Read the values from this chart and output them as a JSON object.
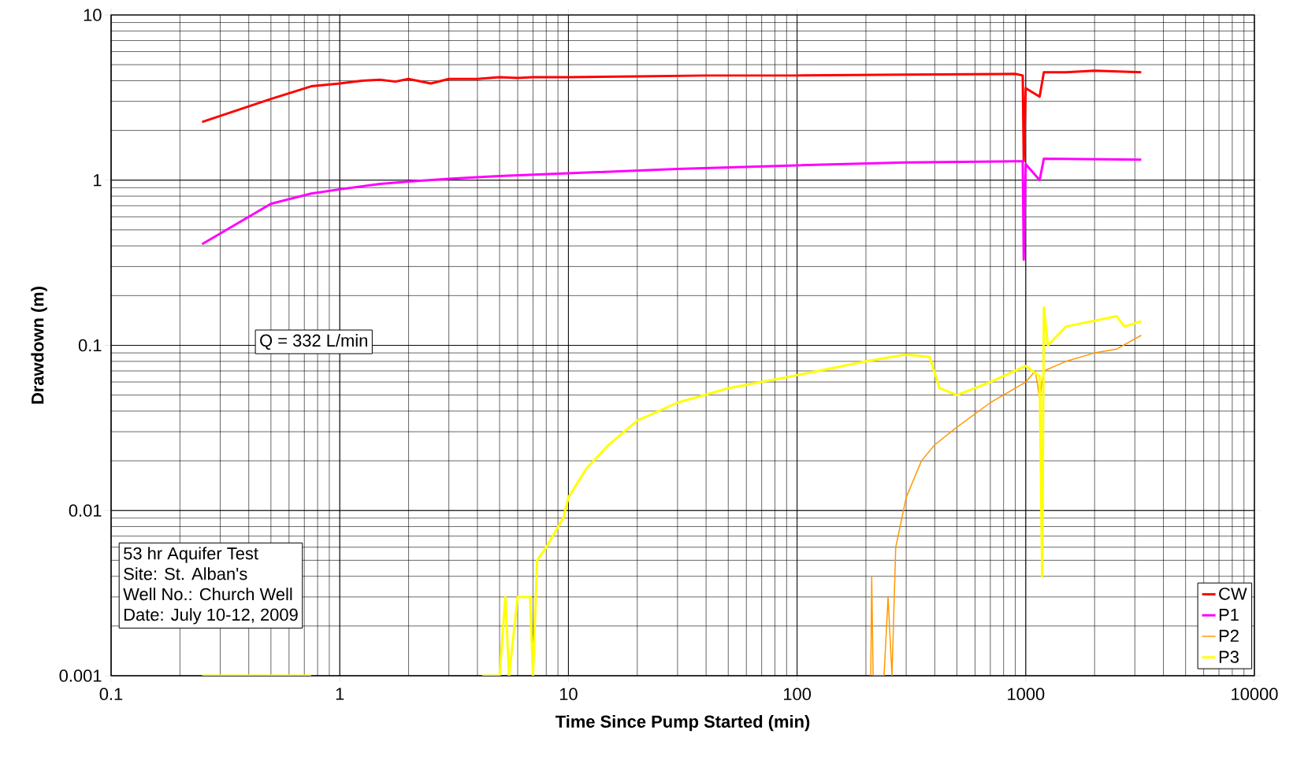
{
  "chart_data": {
    "type": "line",
    "xlabel": "Time Since Pump Started (min)",
    "ylabel": "Drawdown (m)",
    "log": "xy",
    "grid": true,
    "legend": "bottom right",
    "xlim": [
      0.1,
      10000
    ],
    "ylim": [
      0.001,
      10
    ],
    "xticks": [
      0.1,
      1,
      10,
      100,
      1000,
      10000
    ],
    "yticks": [
      0.001,
      0.01,
      0.1,
      1,
      10
    ],
    "annotations": [
      "Q = 332 L/min",
      "53 hr Aquifer Test",
      "Site: St. Alban's",
      "Well No.: Church Well",
      "Date: July 10-12, 2009"
    ],
    "series": [
      {
        "name": "CW",
        "color": "#ff0000",
        "x": [
          0.25,
          0.5,
          0.75,
          1,
          1.25,
          1.5,
          1.75,
          2,
          2.5,
          3,
          4,
          5,
          6,
          7,
          10,
          20,
          40,
          100,
          300,
          900,
          970,
          980,
          1000,
          1150,
          1200,
          1500,
          2000,
          3200
        ],
        "values": [
          2.25,
          3.1,
          3.7,
          3.85,
          4.0,
          4.05,
          3.95,
          4.1,
          3.85,
          4.1,
          4.1,
          4.2,
          4.15,
          4.2,
          4.2,
          4.25,
          4.3,
          4.3,
          4.35,
          4.4,
          4.3,
          1.3,
          3.6,
          3.2,
          4.5,
          4.5,
          4.6,
          4.5
        ]
      },
      {
        "name": "P1",
        "color": "#ff00ff",
        "x": [
          0.25,
          0.5,
          0.75,
          1,
          1.5,
          2,
          3,
          5,
          10,
          30,
          100,
          300,
          900,
          970,
          980,
          1000,
          1150,
          1200,
          3200
        ],
        "values": [
          0.41,
          0.72,
          0.83,
          0.88,
          0.95,
          0.98,
          1.02,
          1.06,
          1.1,
          1.17,
          1.23,
          1.28,
          1.3,
          1.3,
          0.33,
          1.25,
          1.0,
          1.35,
          1.33
        ]
      },
      {
        "name": "P2",
        "color": "#ff9900",
        "x": [
          210,
          212,
          215,
          240,
          250,
          260,
          270,
          300,
          350,
          400,
          500,
          700,
          1000,
          1100,
          1150,
          1200,
          1500,
          2000,
          2500,
          3200
        ],
        "values": [
          0.001,
          0.004,
          0.001,
          0.001,
          0.003,
          0.001,
          0.006,
          0.012,
          0.02,
          0.025,
          0.032,
          0.045,
          0.06,
          0.07,
          0.048,
          0.07,
          0.08,
          0.09,
          0.095,
          0.115
        ]
      },
      {
        "name": "P3",
        "color": "#ffff00",
        "x": [
          0.25,
          0.75,
          2,
          4.2,
          5,
          5.3,
          5.5,
          6,
          6.8,
          7,
          7.3,
          8,
          9.5,
          10,
          12,
          15,
          20,
          30,
          50,
          100,
          200,
          300,
          380,
          420,
          500,
          700,
          1000,
          1150,
          1180,
          1200,
          1250,
          1500,
          2500,
          2700,
          3200
        ],
        "values": [
          0.001,
          0.001,
          null,
          0.001,
          0.001,
          0.003,
          0.001,
          0.003,
          0.003,
          0.001,
          0.005,
          0.006,
          0.009,
          0.012,
          0.018,
          0.025,
          0.035,
          0.045,
          0.055,
          0.066,
          0.08,
          0.088,
          0.085,
          0.055,
          0.05,
          0.06,
          0.075,
          0.065,
          0.004,
          0.17,
          0.1,
          0.13,
          0.15,
          0.13,
          0.14
        ]
      }
    ]
  }
}
